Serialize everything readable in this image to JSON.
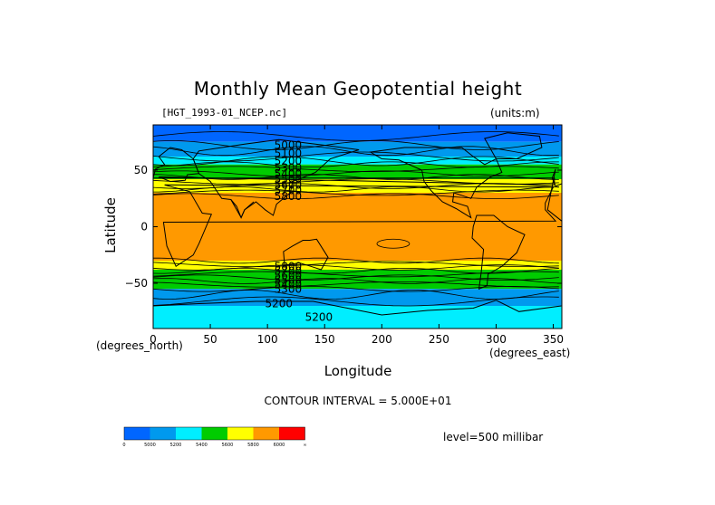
{
  "chart_data": {
    "type": "heatmap",
    "title": "Monthly Mean Geopotential height",
    "source_label": "[HGT_1993-01_NCEP.nc]",
    "units_label": "(units:m)",
    "xlabel": "Longitude",
    "ylabel": "Latitude",
    "x_units": "(degrees_east)",
    "y_units": "(degrees_north)",
    "xlim": [
      0,
      357.5
    ],
    "ylim": [
      -90,
      90
    ],
    "x_ticks": [
      0,
      50,
      100,
      150,
      200,
      250,
      300,
      350
    ],
    "y_ticks": [
      50,
      0,
      -50
    ],
    "y_tick_labels": [
      "50",
      "0",
      "−50"
    ],
    "contour_interval": "CONTOUR INTERVAL = 5.000E+01",
    "level": "level=500 millibar",
    "colorbar": {
      "colors": [
        "#0066ff",
        "#0099ee",
        "#00eeff",
        "#00cc00",
        "#ffff00",
        "#ff9900",
        "#ff0000"
      ],
      "labels": [
        "0",
        "5000",
        "5200",
        "5400",
        "5600",
        "5800",
        "6000",
        "∞"
      ]
    },
    "bands": [
      {
        "lat_top": 90,
        "lat_bottom": 75,
        "color": "#0066ff"
      },
      {
        "lat_top": 75,
        "lat_bottom": 62,
        "color": "#0099ee"
      },
      {
        "lat_top": 62,
        "lat_bottom": 55,
        "color": "#00eeff"
      },
      {
        "lat_top": 55,
        "lat_bottom": 42,
        "color": "#00cc00"
      },
      {
        "lat_top": 42,
        "lat_bottom": 30,
        "color": "#ffff00"
      },
      {
        "lat_top": 30,
        "lat_bottom": -30,
        "color": "#ff9900"
      },
      {
        "lat_top": -30,
        "lat_bottom": -38,
        "color": "#ffff00"
      },
      {
        "lat_top": -38,
        "lat_bottom": -55,
        "color": "#00cc00"
      },
      {
        "lat_top": -55,
        "lat_bottom": -70,
        "color": "#0099ee"
      },
      {
        "lat_top": -70,
        "lat_bottom": -90,
        "color": "#00eeff"
      }
    ],
    "contour_labels": [
      {
        "text": "5000",
        "lon": 118,
        "lat": 72
      },
      {
        "text": "5100",
        "lon": 118,
        "lat": 65
      },
      {
        "text": "5200",
        "lon": 118,
        "lat": 58
      },
      {
        "text": "5300",
        "lon": 118,
        "lat": 52
      },
      {
        "text": "5400",
        "lon": 118,
        "lat": 47
      },
      {
        "text": "5500",
        "lon": 118,
        "lat": 42
      },
      {
        "text": "5600",
        "lon": 118,
        "lat": 37
      },
      {
        "text": "5700",
        "lon": 118,
        "lat": 32
      },
      {
        "text": "5800",
        "lon": 118,
        "lat": 27
      },
      {
        "text": "5800",
        "lon": 118,
        "lat": -35
      },
      {
        "text": "5700",
        "lon": 118,
        "lat": -39
      },
      {
        "text": "5600",
        "lon": 118,
        "lat": -43
      },
      {
        "text": "5500",
        "lon": 118,
        "lat": -47
      },
      {
        "text": "5400",
        "lon": 118,
        "lat": -51
      },
      {
        "text": "5300",
        "lon": 118,
        "lat": -55
      },
      {
        "text": "5200",
        "lon": 110,
        "lat": -68
      },
      {
        "text": "5200",
        "lon": 145,
        "lat": -80
      }
    ]
  }
}
